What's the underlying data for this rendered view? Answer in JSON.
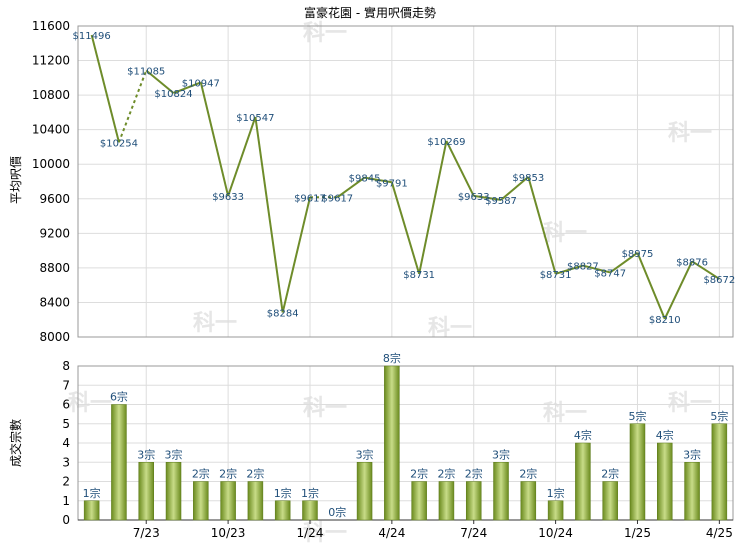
{
  "colors": {
    "line": "#6e8c2a",
    "bar_dark": "#6a8a1e",
    "bar_light": "#c8dc88",
    "grid": "#dddddd",
    "label": "#1f4e79"
  },
  "chart_data": [
    {
      "type": "line",
      "title": "富豪花園 - 實用呎價走勢",
      "ylabel": "平均呎價",
      "ylim": [
        8000,
        11600
      ],
      "yticks": [
        8000,
        8400,
        8800,
        9200,
        9600,
        10000,
        10400,
        10800,
        11200,
        11600
      ],
      "values": [
        11496,
        10254,
        11085,
        10824,
        10947,
        9633,
        10547,
        8284,
        9617,
        9617,
        9845,
        9791,
        8731,
        10269,
        9633,
        9587,
        9853,
        8731,
        8827,
        8747,
        8975,
        8210,
        8876,
        8672
      ],
      "data_labels": [
        "$11496",
        "$10254",
        "$11085",
        "$10824",
        "$10947",
        "$9633",
        "$10547",
        "$8284",
        "$9617",
        "$9617",
        "$9845",
        "$9791",
        "$8731",
        "$10269",
        "$9633",
        "$9587",
        "$9853",
        "$8731",
        "$8827",
        "$8747",
        "$8975",
        "$8210",
        "$8876",
        "$8672"
      ],
      "dashed_segments": [
        [
          1,
          2
        ],
        [
          8,
          9
        ]
      ]
    },
    {
      "type": "bar",
      "ylabel": "成交宗數",
      "ylim": [
        0,
        8
      ],
      "yticks": [
        0,
        1,
        2,
        3,
        4,
        5,
        6,
        7,
        8
      ],
      "values": [
        1,
        6,
        3,
        3,
        2,
        2,
        2,
        1,
        1,
        0,
        3,
        8,
        2,
        2,
        2,
        3,
        2,
        1,
        4,
        2,
        5,
        4,
        3,
        5
      ],
      "bar_labels": [
        "1宗",
        "6宗",
        "3宗",
        "3宗",
        "2宗",
        "2宗",
        "2宗",
        "1宗",
        "1宗",
        "0宗",
        "3宗",
        "8宗",
        "2宗",
        "2宗",
        "2宗",
        "3宗",
        "2宗",
        "1宗",
        "4宗",
        "2宗",
        "5宗",
        "4宗",
        "3宗",
        "5宗"
      ],
      "xtick_labels": [
        "7/23",
        "10/23",
        "1/24",
        "4/24",
        "7/24",
        "10/24",
        "1/25",
        "4/25"
      ],
      "xtick_positions": [
        2,
        5,
        8,
        11,
        14,
        17,
        20,
        23
      ]
    }
  ]
}
